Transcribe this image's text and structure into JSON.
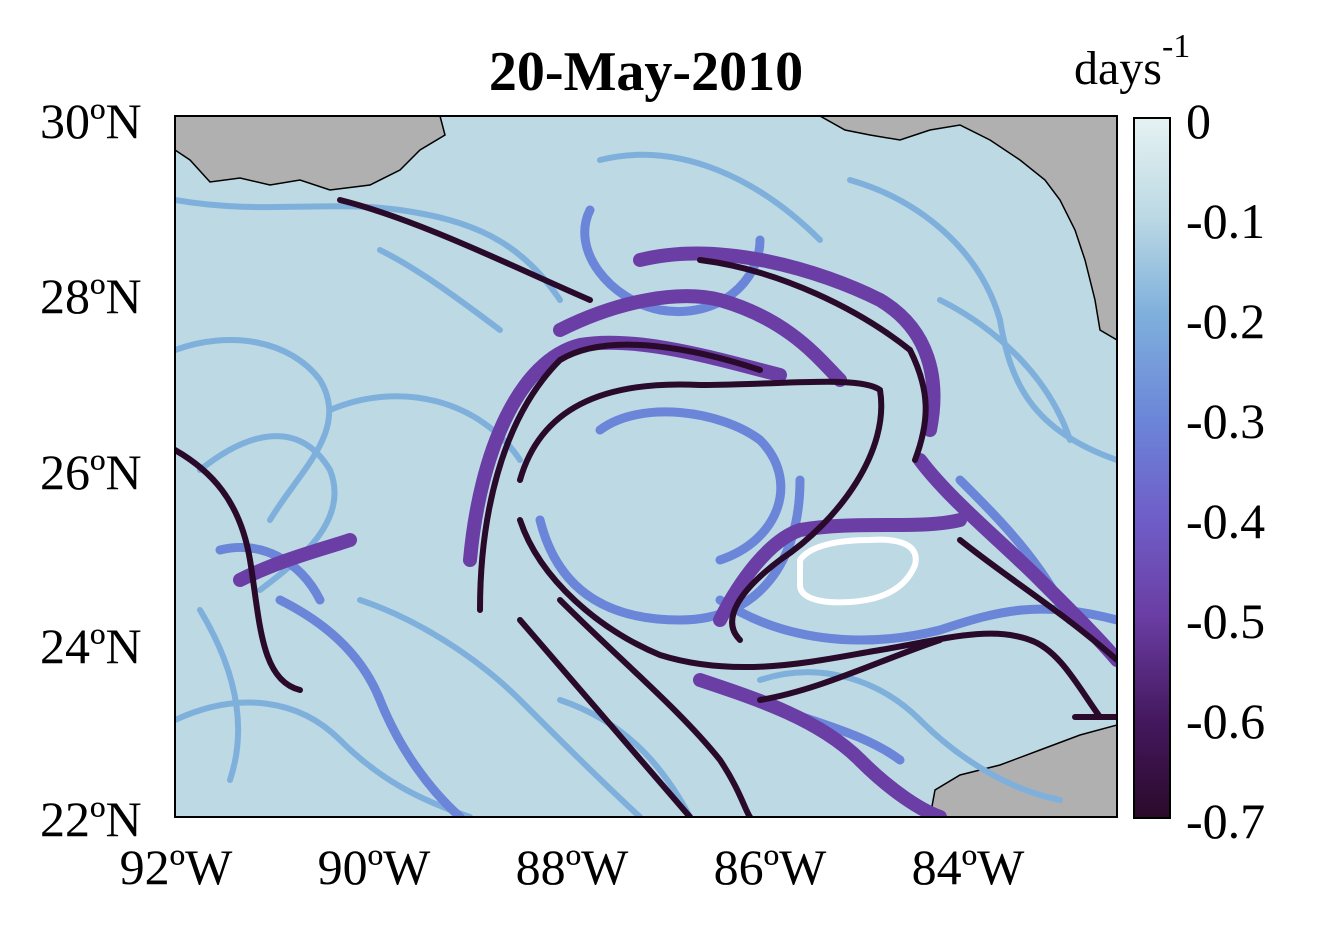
{
  "title": "20-May-2010",
  "colorbar": {
    "unit_base": "days",
    "unit_exponent": "-1",
    "ticks": [
      "0",
      "-0.1",
      "-0.2",
      "-0.3",
      "-0.4",
      "-0.5",
      "-0.6",
      "-0.7"
    ],
    "range": [
      -0.7,
      0
    ],
    "colors": [
      "#e6f2f2",
      "#bcd9e4",
      "#7fb0dc",
      "#6b86d8",
      "#6f5ec8",
      "#6a3ea4",
      "#45185f",
      "#2a0a2a"
    ]
  },
  "map": {
    "lat_labels": [
      "30ºN",
      "28ºN",
      "26ºN",
      "24ºN",
      "22ºN"
    ],
    "lon_labels": [
      "92ºW",
      "90ºW",
      "88ºW",
      "86ºW",
      "84ºW"
    ],
    "lat_range": [
      22,
      30
    ],
    "lon_range": [
      -92,
      -82.5
    ],
    "ocean_color": "#bcd9e4",
    "land_color": "#b0b0b0"
  }
}
